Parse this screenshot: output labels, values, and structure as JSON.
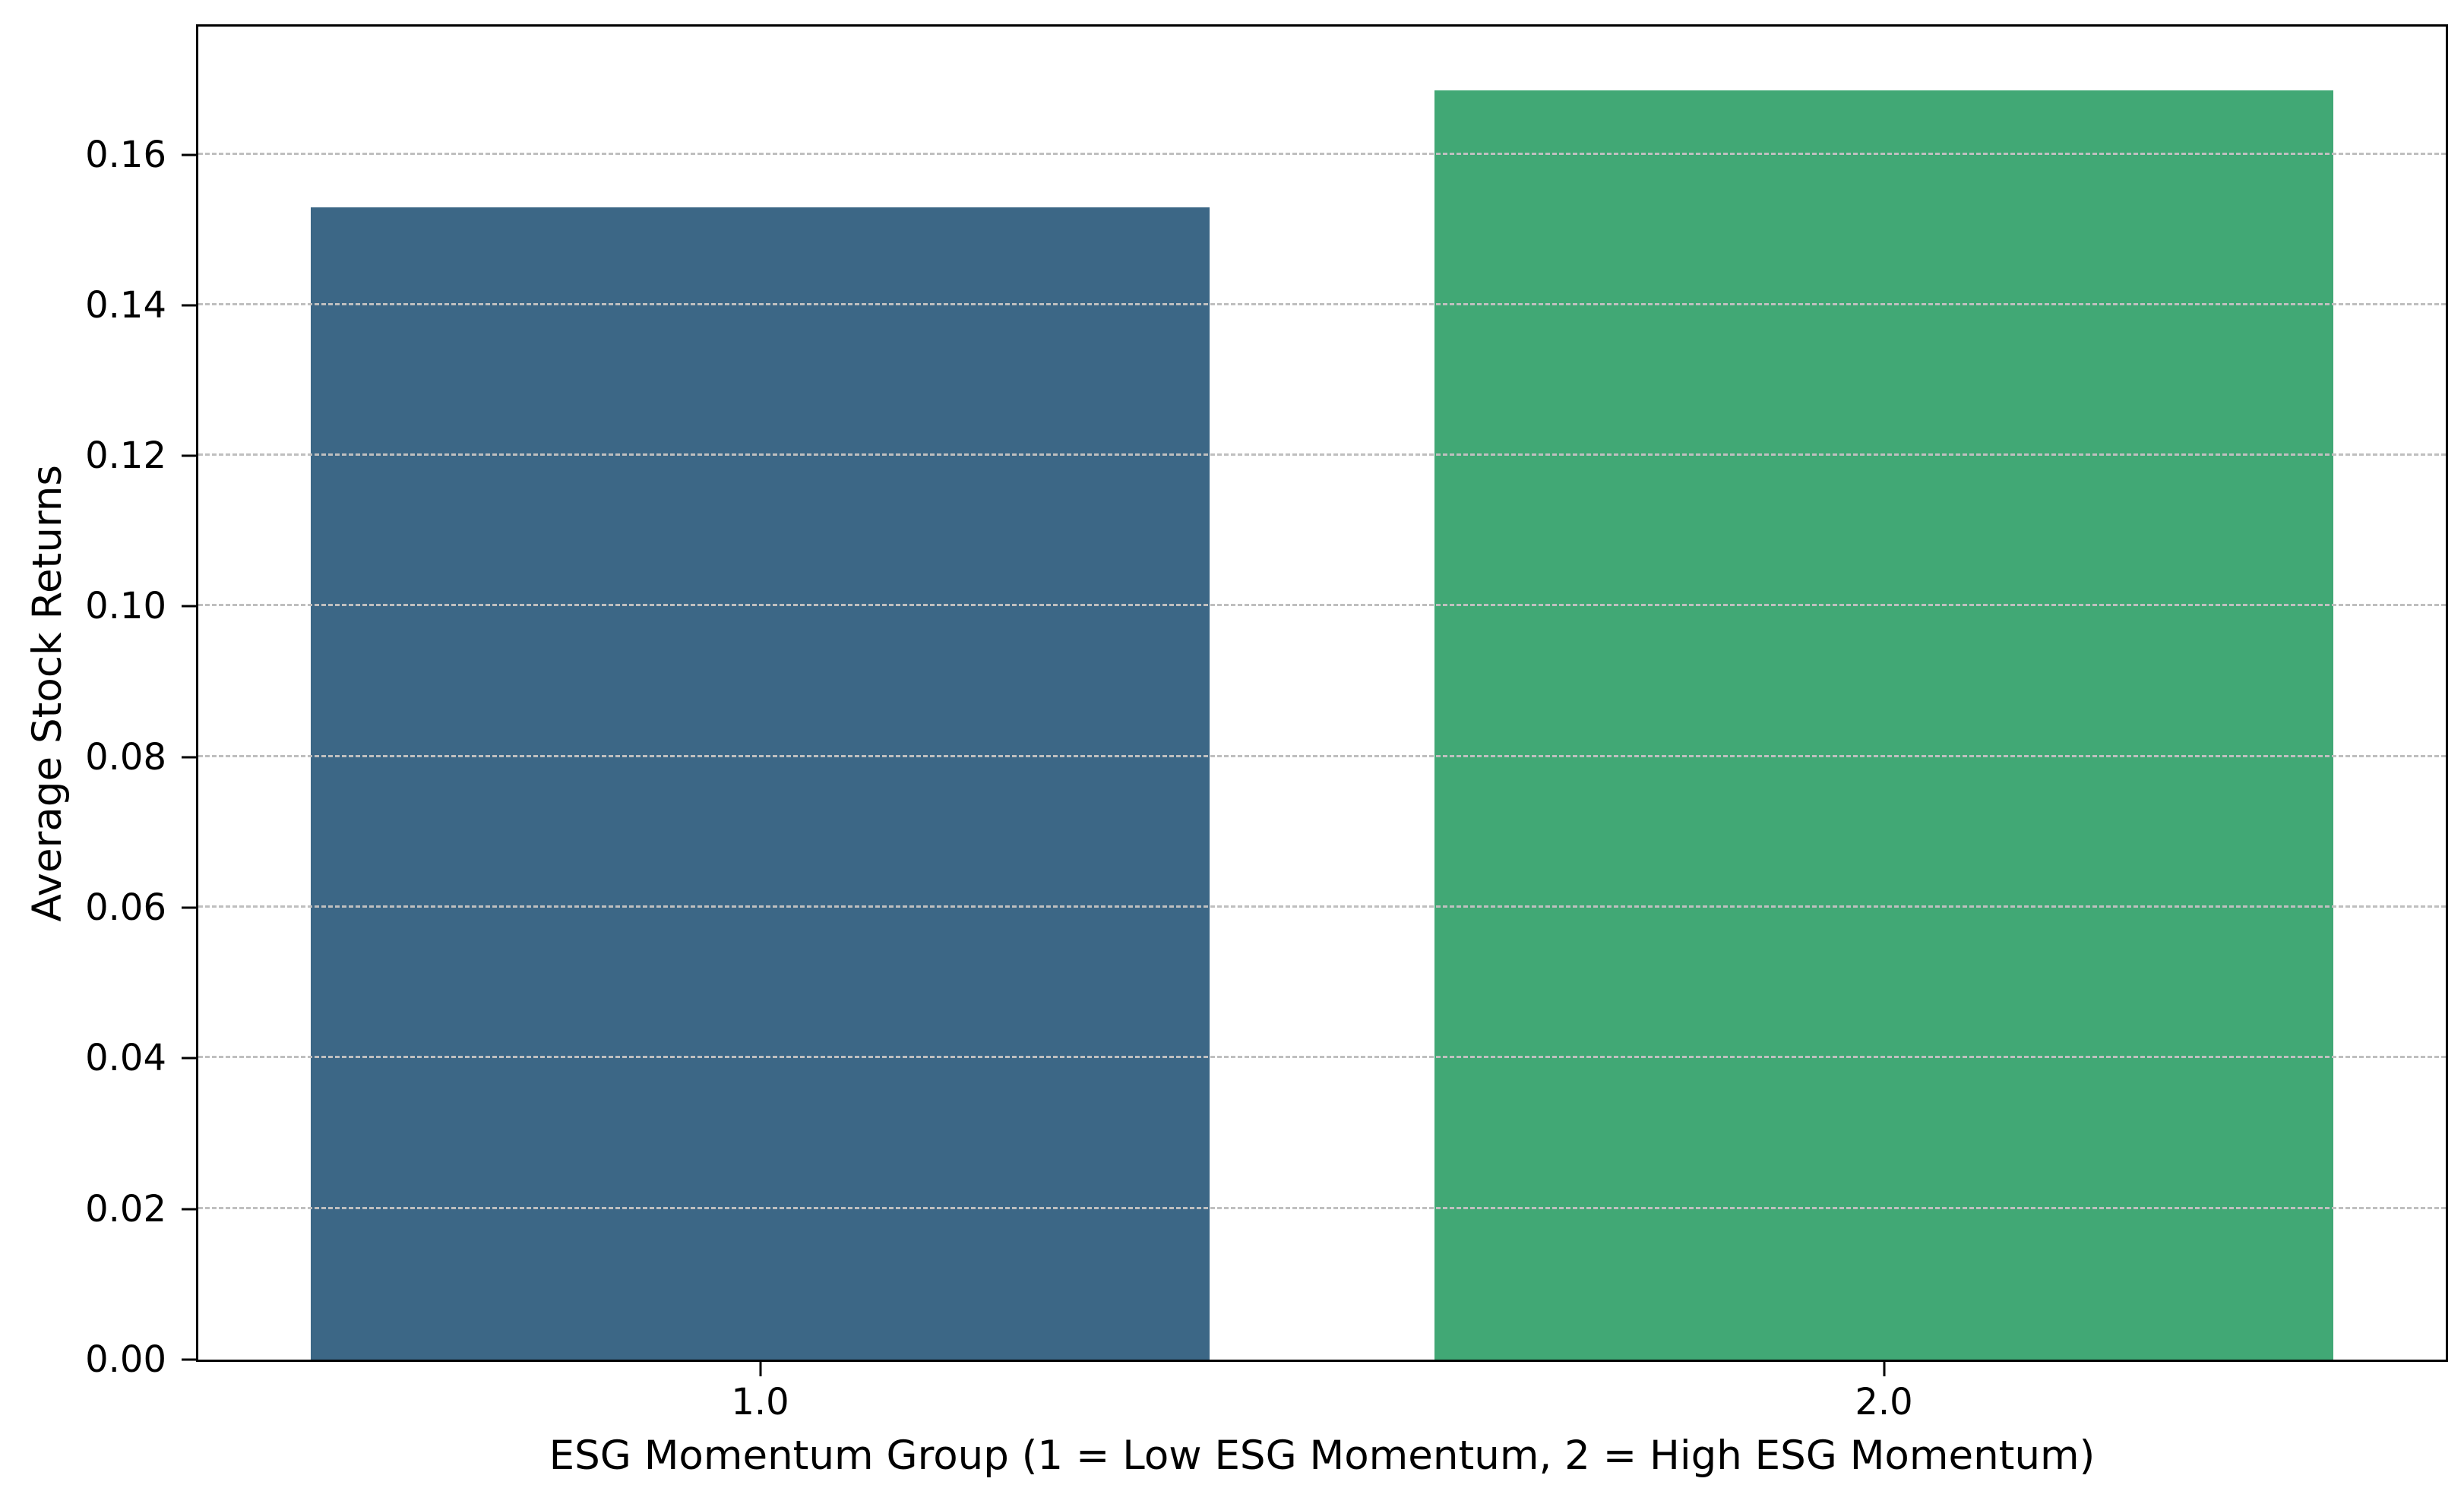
{
  "chart_data": {
    "type": "bar",
    "title": "",
    "xlabel": "ESG Momentum Group (1 = Low ESG Momentum, 2 = High ESG Momentum)",
    "ylabel": "Average Stock Returns",
    "categories": [
      "1.0",
      "2.0"
    ],
    "values": [
      0.153,
      0.1685
    ],
    "bar_colors": [
      "#3c6786",
      "#41a875"
    ],
    "bar_width_fraction": 0.8,
    "ylim": [
      0,
      0.177
    ],
    "yticks": [
      {
        "label": "0.00",
        "value": 0.0
      },
      {
        "label": "0.02",
        "value": 0.02
      },
      {
        "label": "0.04",
        "value": 0.04
      },
      {
        "label": "0.06",
        "value": 0.06
      },
      {
        "label": "0.08",
        "value": 0.08
      },
      {
        "label": "0.10",
        "value": 0.1
      },
      {
        "label": "0.12",
        "value": 0.12
      },
      {
        "label": "0.14",
        "value": 0.14
      },
      {
        "label": "0.16",
        "value": 0.16
      }
    ],
    "grid": {
      "axis": "y",
      "style": "dashed",
      "color": "#bfbfbf"
    },
    "legend_position": "none",
    "spine_color": "#000000",
    "background_color": "#ffffff"
  }
}
